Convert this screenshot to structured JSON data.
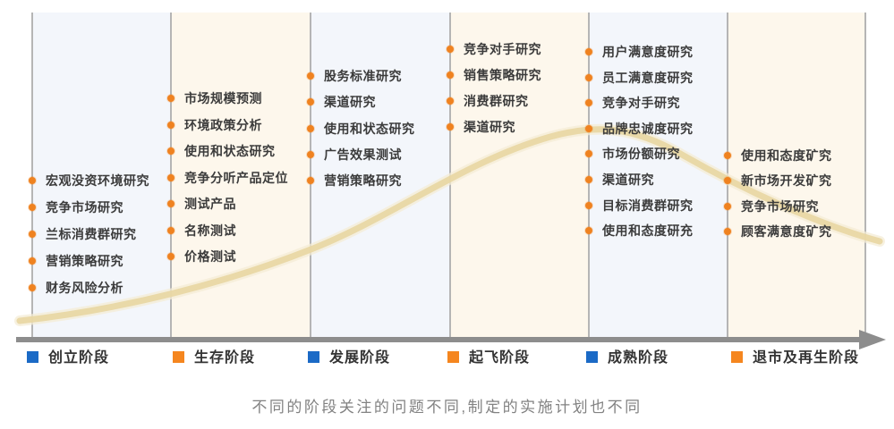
{
  "colors": {
    "bullet": "#ef8220",
    "legend_blue": "#1b6ac6",
    "legend_orange": "#f5861f",
    "panel_blue": "#f3f6fb",
    "panel_cream": "#fdf7ec",
    "separator": "#b5b5b5",
    "axis": "#8d8d8d",
    "curve_outer": "#f4ecd6",
    "curve_inner": "#e8d6a2"
  },
  "stages": [
    {
      "label": "创立阶段",
      "legend_color": "blue",
      "panel": "blue",
      "items": [
        "宏观没资环境研究",
        "竞争市场研究",
        "兰标消费群研究",
        "营销策略研究",
        "财务风险分析"
      ]
    },
    {
      "label": "生存阶段",
      "legend_color": "orange",
      "panel": "cream",
      "items": [
        "市场规模预测",
        "环境政策分析",
        "使用和状态研究",
        "竞争分听产品定位",
        "测试产品",
        "名称测试",
        "价格测试"
      ]
    },
    {
      "label": "发展阶段",
      "legend_color": "blue",
      "panel": "blue",
      "items": [
        "股务标准研究",
        "渠道研究",
        "使用和状态研究",
        "广告效果测试",
        "营销策略研究"
      ]
    },
    {
      "label": "起飞阶段",
      "legend_color": "orange",
      "panel": "cream",
      "items": [
        "竞争对手研究",
        "销售策略研究",
        "消费群研究",
        "渠道研究"
      ]
    },
    {
      "label": "成熟阶段",
      "legend_color": "blue",
      "panel": "blue",
      "items": [
        "用户满意度研究",
        "员工满意度研究",
        "竞争对手研究",
        "品牌忠诚度研究",
        "市场份额研究",
        "渠道研究",
        "目标消费群研究",
        "使用和态度研充"
      ]
    },
    {
      "label": "退市及再生阶段",
      "legend_color": "orange",
      "panel": "cream",
      "items": [
        "使用和态度矿究",
        "新市场开发矿究",
        "竞争市场研究",
        "顾客满意度矿究"
      ]
    }
  ],
  "caption": "不同的阶段关注的问题不同,制定的实施计划也不同"
}
